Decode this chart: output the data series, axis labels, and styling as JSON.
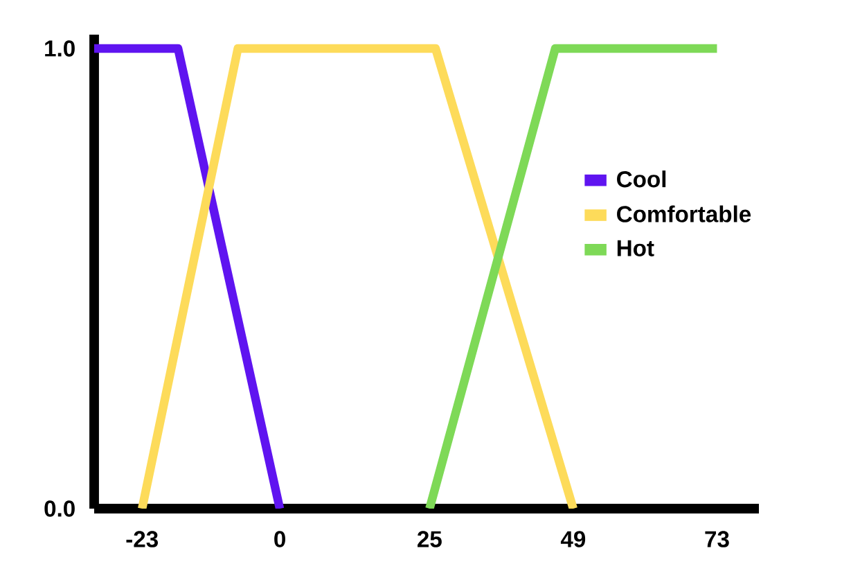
{
  "chart_data": {
    "type": "line",
    "xlim": [
      -31,
      80
    ],
    "ylim": [
      0,
      1.03
    ],
    "xticks": [
      -23,
      0,
      25,
      49,
      73
    ],
    "yticks": [
      {
        "value": 0,
        "label": "0.0"
      },
      {
        "value": 1,
        "label": "1.0"
      }
    ],
    "legend": "right",
    "grid": false,
    "marker": "none",
    "line_style": "solid",
    "series": [
      {
        "name": "Cool",
        "color": "#5f14f0",
        "x": [
          -31,
          -17,
          0
        ],
        "values": [
          1,
          1,
          0
        ]
      },
      {
        "name": "Comfortable",
        "color": "#fddb5a",
        "x": [
          -23,
          -7,
          26,
          49
        ],
        "values": [
          0,
          1,
          1,
          0
        ]
      },
      {
        "name": "Hot",
        "color": "#7ed957",
        "x": [
          25,
          46,
          73
        ],
        "values": [
          0,
          1,
          1
        ]
      }
    ]
  }
}
